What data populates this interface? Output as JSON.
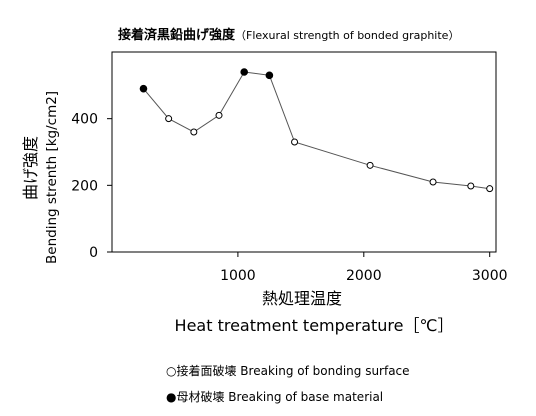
{
  "chart_data": {
    "type": "line",
    "title": "接着済黒鉛曲げ強度",
    "subtitle": "（Flexural strength of bonded graphite）",
    "xlabel_ja": "熱処理温度",
    "xlabel_en": "Heat treatment temperature［℃］",
    "ylabel_ja": "曲げ強度",
    "ylabel_en": "Bending strenth [kg/cm2]",
    "xlim": [
      0,
      3050
    ],
    "ylim": [
      0,
      600
    ],
    "x_ticks": [
      1000,
      2000,
      3000
    ],
    "y_ticks": [
      0,
      200,
      400
    ],
    "grid": false,
    "legend": [
      {
        "marker": "open",
        "symbol": "○",
        "label": "接着面破壊 Breaking of bonding surface"
      },
      {
        "marker": "filled",
        "symbol": "●",
        "label": "母材破壊 Breaking of base material"
      }
    ],
    "series": [
      {
        "points": [
          {
            "x": 250,
            "y": 490,
            "marker": "filled"
          },
          {
            "x": 450,
            "y": 400,
            "marker": "open"
          },
          {
            "x": 650,
            "y": 360,
            "marker": "open"
          },
          {
            "x": 850,
            "y": 410,
            "marker": "open"
          },
          {
            "x": 1050,
            "y": 540,
            "marker": "filled"
          },
          {
            "x": 1250,
            "y": 530,
            "marker": "filled"
          },
          {
            "x": 1450,
            "y": 330,
            "marker": "open"
          },
          {
            "x": 2050,
            "y": 260,
            "marker": "open"
          },
          {
            "x": 2550,
            "y": 210,
            "marker": "open"
          },
          {
            "x": 2850,
            "y": 198,
            "marker": "open"
          },
          {
            "x": 3000,
            "y": 190,
            "marker": "open"
          }
        ]
      }
    ]
  }
}
